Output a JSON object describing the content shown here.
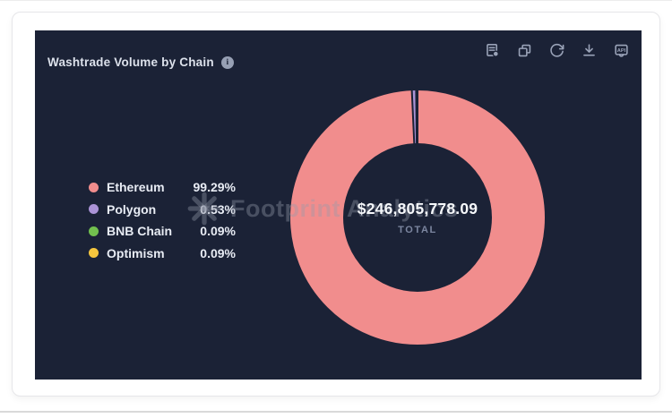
{
  "panel": {
    "title": "Washtrade Volume by Chain",
    "info_icon": "i",
    "toolbar": {
      "icons": [
        "view-data",
        "copy",
        "refresh",
        "download",
        "api"
      ],
      "api_label": "API"
    }
  },
  "chart_data": {
    "type": "pie",
    "subtype": "donut",
    "title": "Washtrade Volume by Chain",
    "categories": [
      "Ethereum",
      "Polygon",
      "BNB Chain",
      "Optimism"
    ],
    "values": [
      99.29,
      0.53,
      0.09,
      0.09
    ],
    "unit": "%",
    "colors": [
      "#F18D8D",
      "#AB93D6",
      "#72C04E",
      "#F6C63E"
    ],
    "center": {
      "total": "$246,805,778.09",
      "label": "TOTAL"
    },
    "legend_position": "left",
    "background": "#1B2236"
  },
  "legend": {
    "items": [
      {
        "label": "Ethereum",
        "percent": "99.29%",
        "color": "#F18D8D"
      },
      {
        "label": "Polygon",
        "percent": "0.53%",
        "color": "#AB93D6"
      },
      {
        "label": "BNB Chain",
        "percent": "0.09%",
        "color": "#72C04E"
      },
      {
        "label": "Optimism",
        "percent": "0.09%",
        "color": "#F6C63E"
      }
    ]
  },
  "center": {
    "total": "$246,805,778.09",
    "label": "TOTAL"
  },
  "watermark": {
    "text": "Footprint Analytics"
  }
}
